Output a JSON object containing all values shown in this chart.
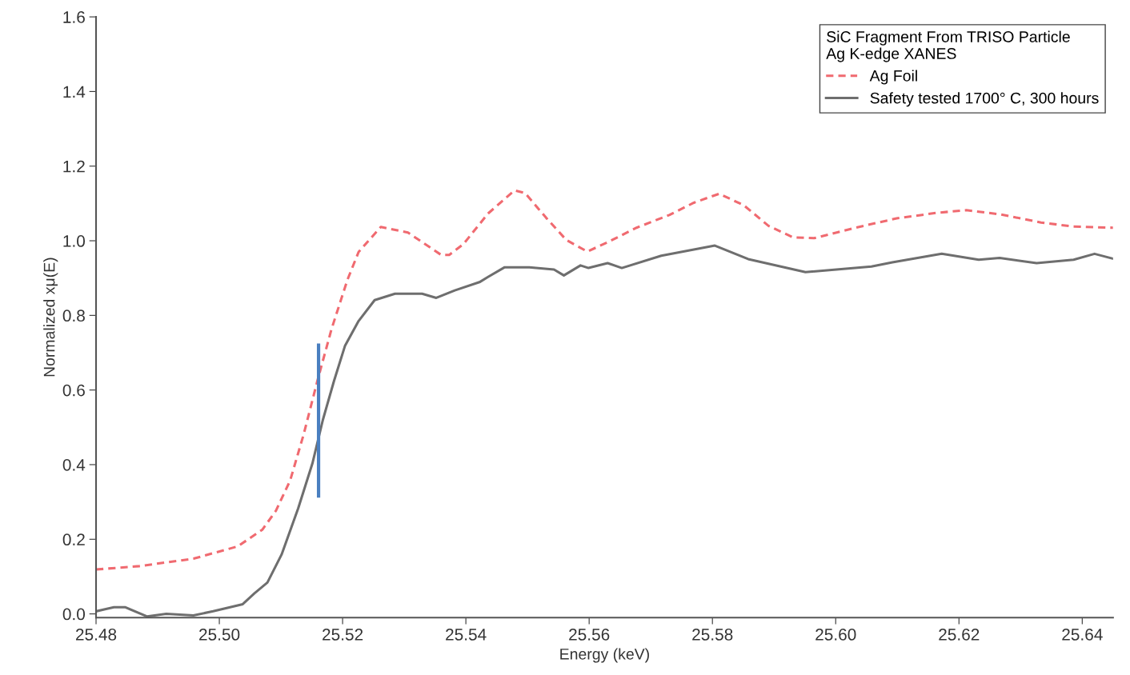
{
  "chart_data": {
    "type": "line",
    "xlabel": "Energy (keV)",
    "ylabel": "Normalized xμ(E)",
    "legend_title": "SiC Fragment From TRISO Particle\nAg K-edge XANES",
    "legend": "top right",
    "grid": false,
    "xlim": [
      25.48,
      25.645
    ],
    "ylim": [
      -0.01,
      1.6
    ],
    "xticks": [
      25.48,
      {
        "value": 25.5,
        "label": "25.50"
      },
      25.52,
      25.54,
      25.56,
      25.58,
      {
        "value": 25.6,
        "label": "25.60"
      },
      25.62,
      25.64
    ],
    "yticks": [
      {
        "value": 0,
        "label": "0.0"
      },
      0.2,
      0.4,
      0.6,
      0.8,
      {
        "value": 1,
        "label": "1.0"
      },
      1.2,
      1.4,
      1.6
    ],
    "series": [
      {
        "name": "Ag Foil",
        "color": "#f06a70",
        "line_style": "dashed",
        "x": [
          25.48,
          25.487,
          25.4958,
          25.503,
          25.507,
          25.5092,
          25.5115,
          25.5137,
          25.5159,
          25.5182,
          25.5208,
          25.5226,
          25.5262,
          25.5306,
          25.536,
          25.5373,
          25.5396,
          25.5436,
          25.5479,
          25.5496,
          25.553,
          25.5563,
          25.5597,
          25.563,
          25.5677,
          25.573,
          25.577,
          25.5811,
          25.5851,
          25.5891,
          25.5931,
          25.5965,
          25.6032,
          25.6099,
          25.6165,
          25.6212,
          25.6266,
          25.6333,
          25.6386,
          25.645
        ],
        "values": [
          0.119,
          0.128,
          0.148,
          0.181,
          0.226,
          0.277,
          0.358,
          0.482,
          0.624,
          0.763,
          0.896,
          0.97,
          1.037,
          1.022,
          0.962,
          0.962,
          0.991,
          1.073,
          1.135,
          1.128,
          1.062,
          1.002,
          0.971,
          0.996,
          1.035,
          1.069,
          1.102,
          1.126,
          1.095,
          1.04,
          1.009,
          1.007,
          1.035,
          1.06,
          1.075,
          1.082,
          1.071,
          1.049,
          1.038,
          1.035
        ]
      },
      {
        "name": "Safety tested 1700° C, 300 hours",
        "color": "#6e6e6e",
        "line_style": "solid",
        "x": [
          25.48,
          25.4829,
          25.4847,
          25.4883,
          25.4914,
          25.4958,
          25.499,
          25.5038,
          25.5057,
          25.5078,
          25.5101,
          25.5128,
          25.5151,
          25.5168,
          25.5186,
          25.5204,
          25.5226,
          25.5252,
          25.5285,
          25.5329,
          25.5352,
          25.5382,
          25.5422,
          25.5436,
          25.5463,
          25.5503,
          25.5543,
          25.5559,
          25.5586,
          25.5599,
          25.563,
          25.5653,
          25.5717,
          25.5804,
          25.5858,
          25.5951,
          25.6058,
          25.6092,
          25.6172,
          25.6232,
          25.6266,
          25.6326,
          25.6386,
          25.642,
          25.645
        ],
        "values": [
          0.007,
          0.018,
          0.018,
          -0.007,
          0.0,
          -0.004,
          0.007,
          0.026,
          0.055,
          0.084,
          0.159,
          0.283,
          0.403,
          0.52,
          0.624,
          0.719,
          0.785,
          0.841,
          0.858,
          0.858,
          0.847,
          0.867,
          0.889,
          0.903,
          0.929,
          0.929,
          0.923,
          0.907,
          0.934,
          0.927,
          0.94,
          0.927,
          0.96,
          0.987,
          0.951,
          0.916,
          0.931,
          0.942,
          0.965,
          0.949,
          0.954,
          0.94,
          0.949,
          0.965,
          0.952
        ]
      },
      {
        "color": "#4a7fc0",
        "line_style": "solid",
        "x": [
          25.5161,
          25.5161
        ],
        "values": [
          0.72,
          0.316
        ]
      }
    ]
  }
}
